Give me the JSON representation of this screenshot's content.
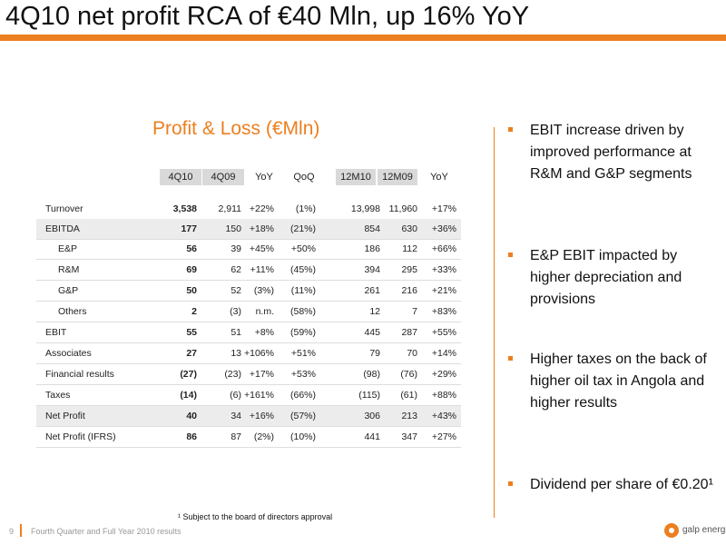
{
  "title": "4Q10 net profit RCA of €40 Mln, up 16% YoY",
  "table_title": "Profit & Loss (€Mln)",
  "columns": [
    "4Q10",
    "4Q09",
    "YoY",
    "QoQ",
    "12M10",
    "12M09",
    "YoY"
  ],
  "rows": [
    {
      "label": "Turnover",
      "values": [
        "3,538",
        "2,911",
        "+22%",
        "(1%)",
        "13,998",
        "11,960",
        "+17%"
      ]
    },
    {
      "label": "EBITDA",
      "values": [
        "177",
        "150",
        "+18%",
        "(21%)",
        "854",
        "630",
        "+36%"
      ]
    },
    {
      "label": "E&P",
      "values": [
        "56",
        "39",
        "+45%",
        "+50%",
        "186",
        "112",
        "+66%"
      ]
    },
    {
      "label": "R&M",
      "values": [
        "69",
        "62",
        "+11%",
        "(45%)",
        "394",
        "295",
        "+33%"
      ]
    },
    {
      "label": "G&P",
      "values": [
        "50",
        "52",
        "(3%)",
        "(11%)",
        "261",
        "216",
        "+21%"
      ]
    },
    {
      "label": "Others",
      "values": [
        "2",
        "(3)",
        "n.m.",
        "(58%)",
        "12",
        "7",
        "+83%"
      ]
    },
    {
      "label": "EBIT",
      "values": [
        "55",
        "51",
        "+8%",
        "(59%)",
        "445",
        "287",
        "+55%"
      ]
    },
    {
      "label": "Associates",
      "values": [
        "27",
        "13",
        "+106%",
        "+51%",
        "79",
        "70",
        "+14%"
      ]
    },
    {
      "label": "Financial results",
      "values": [
        "(27)",
        "(23)",
        "+17%",
        "+53%",
        "(98)",
        "(76)",
        "+29%"
      ]
    },
    {
      "label": "Taxes",
      "values": [
        "(14)",
        "(6)",
        "+161%",
        "(66%)",
        "(115)",
        "(61)",
        "+88%"
      ]
    },
    {
      "label": "Net Profit",
      "values": [
        "40",
        "34",
        "+16%",
        "(57%)",
        "306",
        "213",
        "+43%"
      ]
    },
    {
      "label": "Net Profit (IFRS)",
      "values": [
        "86",
        "87",
        "(2%)",
        "(10%)",
        "441",
        "347",
        "+27%"
      ]
    }
  ],
  "bullets": [
    "EBIT increase driven by improved performance at R&M and G&P segments",
    "E&P EBIT impacted by higher depreciation and provisions",
    "Higher taxes on the back of higher oil tax in Angola and higher results",
    "Dividend per share of €0.20¹"
  ],
  "footnote": "¹ Subject to the board of directors approval",
  "footer": {
    "page": "9",
    "text": "Fourth Quarter and Full Year 2010 results",
    "logo_text": "galp energia"
  },
  "colors": {
    "accent": "#ec7f1f",
    "header_fill": "#d9d9d9",
    "row_shade": "#ececec"
  }
}
